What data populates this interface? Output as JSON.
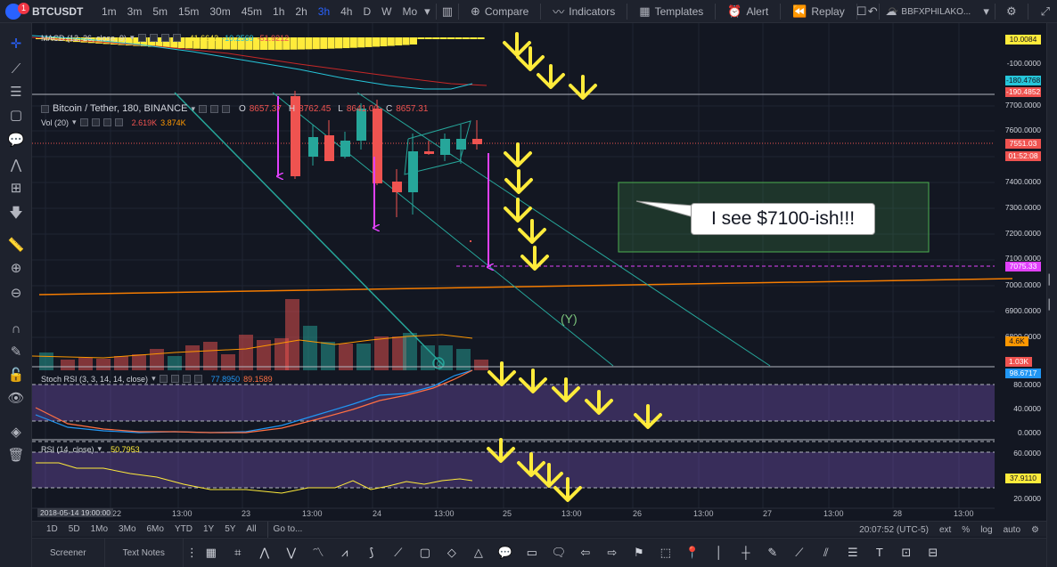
{
  "topbar": {
    "notification_count": "1",
    "symbol": "BTCUSDT",
    "intervals": [
      "1m",
      "3m",
      "5m",
      "15m",
      "30m",
      "45m",
      "1h",
      "2h",
      "3h",
      "4h",
      "D",
      "W",
      "Mo"
    ],
    "active_interval": "3h",
    "compare": "Compare",
    "indicators": "Indicators",
    "templates": "Templates",
    "alert": "Alert",
    "replay": "Replay",
    "user": "BBFXPHILAKO..."
  },
  "macd": {
    "label": "MACD (12, 26, close, 9)",
    "v1": "41.6643",
    "v2": "-10.2569",
    "v3": "-51.9212",
    "axis_ticks": [
      "-100.0000"
    ],
    "tag_top": "10.0084",
    "tag_mid": "-180.4768",
    "tag_low": "-190.4852"
  },
  "main": {
    "pair": "Bitcoin / Tether, 180, BINANCE",
    "o_label": "O",
    "o": "8657.37",
    "h_label": "H",
    "h": "8762.45",
    "l_label": "L",
    "l": "8641.00",
    "c_label": "C",
    "c": "8657.31",
    "vol_label": "Vol (20)",
    "vol1": "2.619K",
    "vol2": "3.874K",
    "price_ticks": [
      "7700.0000",
      "7600.0000",
      "7400.0000",
      "7300.0000",
      "7200.0000",
      "7100.0000",
      "7000.0000",
      "6900.0000",
      "6800.0000"
    ],
    "price_tag": "7551.03",
    "countdown_tag": "01:52:08",
    "target_tag": "7075.33",
    "vol_tag": "4.6K",
    "vol_low_tag": "1.03K",
    "callout": "I see $7100-ish!!!",
    "wave": "(Y)",
    "wave_c": "c",
    "colors": {
      "up": "#26a69a",
      "down": "#ef5350",
      "magenta": "#e040fb",
      "yellow": "#ffeb3b",
      "orange": "#f57c00"
    }
  },
  "stoch": {
    "label": "Stoch RSI (3, 3, 14, 14, close)",
    "v1": "77.8950",
    "v2": "89.1589",
    "axis_ticks": [
      "80.0000",
      "40.0000",
      "0.0000"
    ],
    "tag": "98.6717"
  },
  "rsi": {
    "label": "RSI (14, close)",
    "v1": "50.7953",
    "axis_ticks": [
      "60.0000",
      "20.0000"
    ],
    "tag": "37.9110"
  },
  "time_axis": {
    "cursor": "2018-05-14 19:00:00",
    "labels": [
      "22",
      "13:00",
      "23",
      "13:00",
      "24",
      "13:00",
      "25",
      "13:00",
      "26",
      "13:00",
      "27",
      "13:00",
      "28",
      "13:00"
    ]
  },
  "bottombar": {
    "ranges": [
      "1D",
      "5D",
      "1Mo",
      "3Mo",
      "6Mo",
      "YTD",
      "1Y",
      "5Y",
      "All"
    ],
    "goto": "Go to...",
    "clock": "20:07:52 (UTC-5)",
    "ext": "ext",
    "pct": "%",
    "log": "log",
    "auto": "auto"
  },
  "drawbar": {
    "tabs": [
      "Screener",
      "Text Notes"
    ]
  }
}
